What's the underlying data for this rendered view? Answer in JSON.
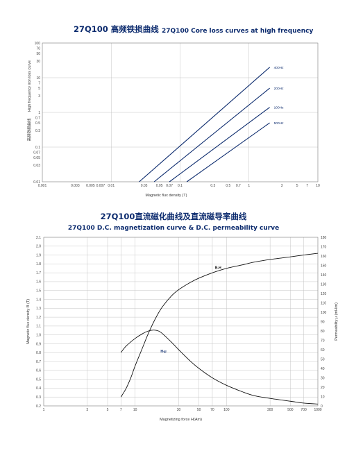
{
  "chart_data": [
    {
      "type": "line",
      "title_cn": "27Q100 高频铁损曲线",
      "title_en": "27Q100 Core loss curves at high frequency",
      "xlabel": "Magnetic flux density (T)",
      "ylabel_en": "High frequency iron loss curve",
      "ylabel_cn": "高频铁损曲线",
      "x_scale": "log",
      "y_scale": "log",
      "xlim": [
        0.001,
        10
      ],
      "ylim": [
        0.01,
        100
      ],
      "x_ticks": [
        {
          "v": 0.001,
          "t": "0.001"
        },
        {
          "v": 0.003,
          "t": "0.003"
        },
        {
          "v": 0.005,
          "t": "0.005"
        },
        {
          "v": 0.007,
          "t": "0.007"
        },
        {
          "v": 0.01,
          "t": "0.01"
        },
        {
          "v": 0.03,
          "t": "0.03"
        },
        {
          "v": 0.05,
          "t": "0.05"
        },
        {
          "v": 0.07,
          "t": "0.07"
        },
        {
          "v": 0.1,
          "t": "0.1"
        },
        {
          "v": 0.3,
          "t": "0.3"
        },
        {
          "v": 0.5,
          "t": "0.5"
        },
        {
          "v": 0.7,
          "t": "0.7"
        },
        {
          "v": 1,
          "t": "1"
        },
        {
          "v": 3,
          "t": "3"
        },
        {
          "v": 5,
          "t": "5"
        },
        {
          "v": 7,
          "t": "7"
        },
        {
          "v": 10,
          "t": "10"
        }
      ],
      "y_ticks": [
        {
          "v": 0.01,
          "t": "0.01"
        },
        {
          "v": 0.03,
          "t": "0.03"
        },
        {
          "v": 0.05,
          "t": "0.05"
        },
        {
          "v": 0.07,
          "t": "0.07"
        },
        {
          "v": 0.1,
          "t": "0.1"
        },
        {
          "v": 0.3,
          "t": "0.3"
        },
        {
          "v": 0.5,
          "t": "0.5"
        },
        {
          "v": 0.7,
          "t": "0.7"
        },
        {
          "v": 1,
          "t": "1"
        },
        {
          "v": 3,
          "t": "3"
        },
        {
          "v": 5,
          "t": "5"
        },
        {
          "v": 7,
          "t": "7"
        },
        {
          "v": 10,
          "t": "10"
        },
        {
          "v": 30,
          "t": "30"
        },
        {
          "v": 50,
          "t": "50"
        },
        {
          "v": 70,
          "t": "70"
        },
        {
          "v": 100,
          "t": "100"
        }
      ],
      "grid_x": [
        0.001,
        0.01,
        0.1,
        1,
        10
      ],
      "grid_y": [
        0.01,
        0.1,
        1,
        10,
        100
      ],
      "grid": true,
      "series": [
        {
          "name": "400Hz",
          "x": [
            0.0255,
            2.0
          ],
          "y": [
            0.01,
            20
          ]
        },
        {
          "name": "200Hz",
          "x": [
            0.042,
            2.0
          ],
          "y": [
            0.01,
            5
          ]
        },
        {
          "name": "100Hz",
          "x": [
            0.07,
            2.0
          ],
          "y": [
            0.01,
            1.4
          ]
        },
        {
          "name": "500Hz",
          "x": [
            0.125,
            2.0
          ],
          "y": [
            0.01,
            0.5
          ]
        }
      ]
    },
    {
      "type": "line",
      "title_cn": "27Q100直流磁化曲线及直流磁导率曲线",
      "title_en": "27Q100 D.C. magnetization curve & D.C. permeability curve",
      "xlabel": "Magnetizing force H(Am)",
      "ylabel_left": "Magnetic flux density B (T)",
      "ylabel_right": "Permeability μ (mH/m)",
      "x_scale": "log",
      "xlim": [
        1,
        1000
      ],
      "ylim_left": [
        0.2,
        2.1
      ],
      "ylim_right": [
        0,
        180
      ],
      "x_ticks": [
        {
          "v": 1,
          "t": "1"
        },
        {
          "v": 3,
          "t": "3"
        },
        {
          "v": 5,
          "t": "5"
        },
        {
          "v": 7,
          "t": "7"
        },
        {
          "v": 10,
          "t": "10"
        },
        {
          "v": 30,
          "t": "30"
        },
        {
          "v": 50,
          "t": "50"
        },
        {
          "v": 70,
          "t": "70"
        },
        {
          "v": 100,
          "t": "100"
        },
        {
          "v": 300,
          "t": "300"
        },
        {
          "v": 500,
          "t": "500"
        },
        {
          "v": 700,
          "t": "700"
        },
        {
          "v": 1000,
          "t": "1000"
        }
      ],
      "y_left_ticks": [
        "0.2",
        "0.3",
        "0.4",
        "0.5",
        "0.6",
        "0.7",
        "0.8",
        "0.9",
        "1.0",
        "1.1",
        "1.2",
        "1.3",
        "1.4",
        "1.5",
        "1.6",
        "1.7",
        "1.8",
        "1.9",
        "2.0",
        "2.1"
      ],
      "y_right_ticks": [
        "0",
        "10",
        "20",
        "30",
        "40",
        "50",
        "60",
        "70",
        "80",
        "90",
        "100",
        "110",
        "120",
        "130",
        "140",
        "150",
        "160",
        "170",
        "180"
      ],
      "grid": true,
      "series": [
        {
          "name": "B-H",
          "axis": "left",
          "x": [
            7,
            8,
            9,
            10,
            12,
            14,
            17,
            20,
            25,
            30,
            40,
            50,
            70,
            100,
            150,
            200,
            300,
            500,
            700,
            1000
          ],
          "y": [
            0.3,
            0.4,
            0.52,
            0.65,
            0.85,
            1.02,
            1.2,
            1.32,
            1.44,
            1.51,
            1.59,
            1.64,
            1.7,
            1.75,
            1.79,
            1.82,
            1.85,
            1.88,
            1.9,
            1.92
          ]
        },
        {
          "name": "H-μ",
          "axis": "right",
          "x": [
            7,
            8,
            10,
            12,
            14,
            16,
            18,
            20,
            25,
            30,
            40,
            50,
            70,
            100,
            150,
            200,
            300,
            500,
            700,
            1000
          ],
          "y": [
            57,
            64,
            72,
            77,
            80,
            81,
            80,
            77,
            68,
            60,
            48,
            40,
            30,
            22,
            15,
            11,
            8,
            5,
            3,
            2
          ]
        }
      ]
    }
  ]
}
